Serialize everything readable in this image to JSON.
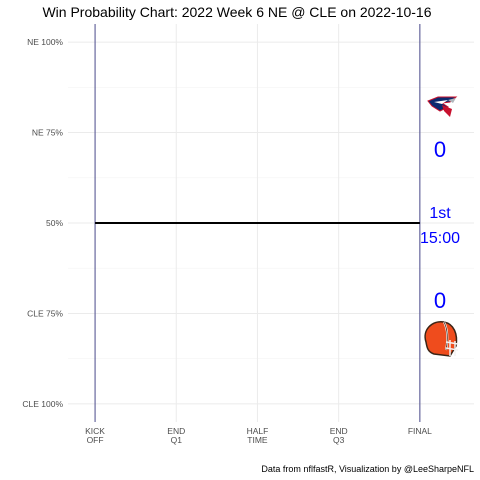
{
  "chart_data": {
    "type": "line",
    "title": "Win Probability Chart: 2022 Week 6 NE @ CLE on 2022-10-16",
    "y_tick_labels": [
      "NE 100%",
      "NE 75%",
      "50%",
      "CLE 75%",
      "CLE 100%"
    ],
    "y_tick_values": [
      1.0,
      0.75,
      0.5,
      0.25,
      0.0
    ],
    "x_tick_labels": [
      {
        "line1": "KICK",
        "line2": "OFF"
      },
      {
        "line1": "END",
        "line2": "Q1"
      },
      {
        "line1": "HALF",
        "line2": "TIME"
      },
      {
        "line1": "END",
        "line2": "Q3"
      },
      {
        "line1": "FINAL",
        "line2": ""
      }
    ],
    "x_tick_values": [
      0,
      900,
      1800,
      2700,
      3600
    ],
    "xlim": [
      -300,
      4200
    ],
    "ylim": [
      -0.05,
      1.05
    ],
    "series": [
      {
        "values": [
          [
            0,
            0.5
          ],
          [
            3600,
            0.5
          ]
        ],
        "color": "#000000"
      }
    ],
    "vertical_lines": [
      0,
      3600
    ],
    "vertical_line_color": "#4a4a8c",
    "grid": true,
    "home_score": "0",
    "away_score": "0",
    "quarter": "1st",
    "clock": "15:00",
    "caption": "Data from nflfastR, Visualization by @LeeSharpeNFL",
    "away_team_icon": "patriots-logo-icon",
    "home_team_icon": "browns-helmet-icon",
    "text_color": "#0000ff"
  }
}
